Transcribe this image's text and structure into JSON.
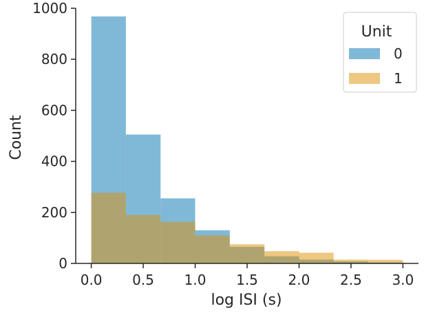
{
  "chart_data": {
    "type": "bar",
    "subtype": "overlaid-histogram",
    "xlabel": "log ISI (s)",
    "ylabel": "Count",
    "xlim": [
      -0.15,
      3.15
    ],
    "ylim": [
      0,
      1000
    ],
    "xticks": [
      "0.0",
      "0.5",
      "1.0",
      "1.5",
      "2.0",
      "2.5",
      "3.0"
    ],
    "yticks": [
      "0",
      "200",
      "400",
      "600",
      "800",
      "1000"
    ],
    "bin_edges": [
      0.0,
      0.333,
      0.667,
      1.0,
      1.333,
      1.667,
      2.0,
      2.333,
      2.667,
      3.0
    ],
    "legend_title": "Unit",
    "legend_position": "top-right",
    "grid": false,
    "series": [
      {
        "name": "0",
        "color": "#0173b2",
        "values": [
          968,
          505,
          255,
          130,
          65,
          28,
          15,
          8,
          4
        ]
      },
      {
        "name": "1",
        "color": "#de8f05",
        "values": [
          277,
          190,
          163,
          110,
          75,
          48,
          42,
          15,
          14
        ]
      }
    ]
  }
}
